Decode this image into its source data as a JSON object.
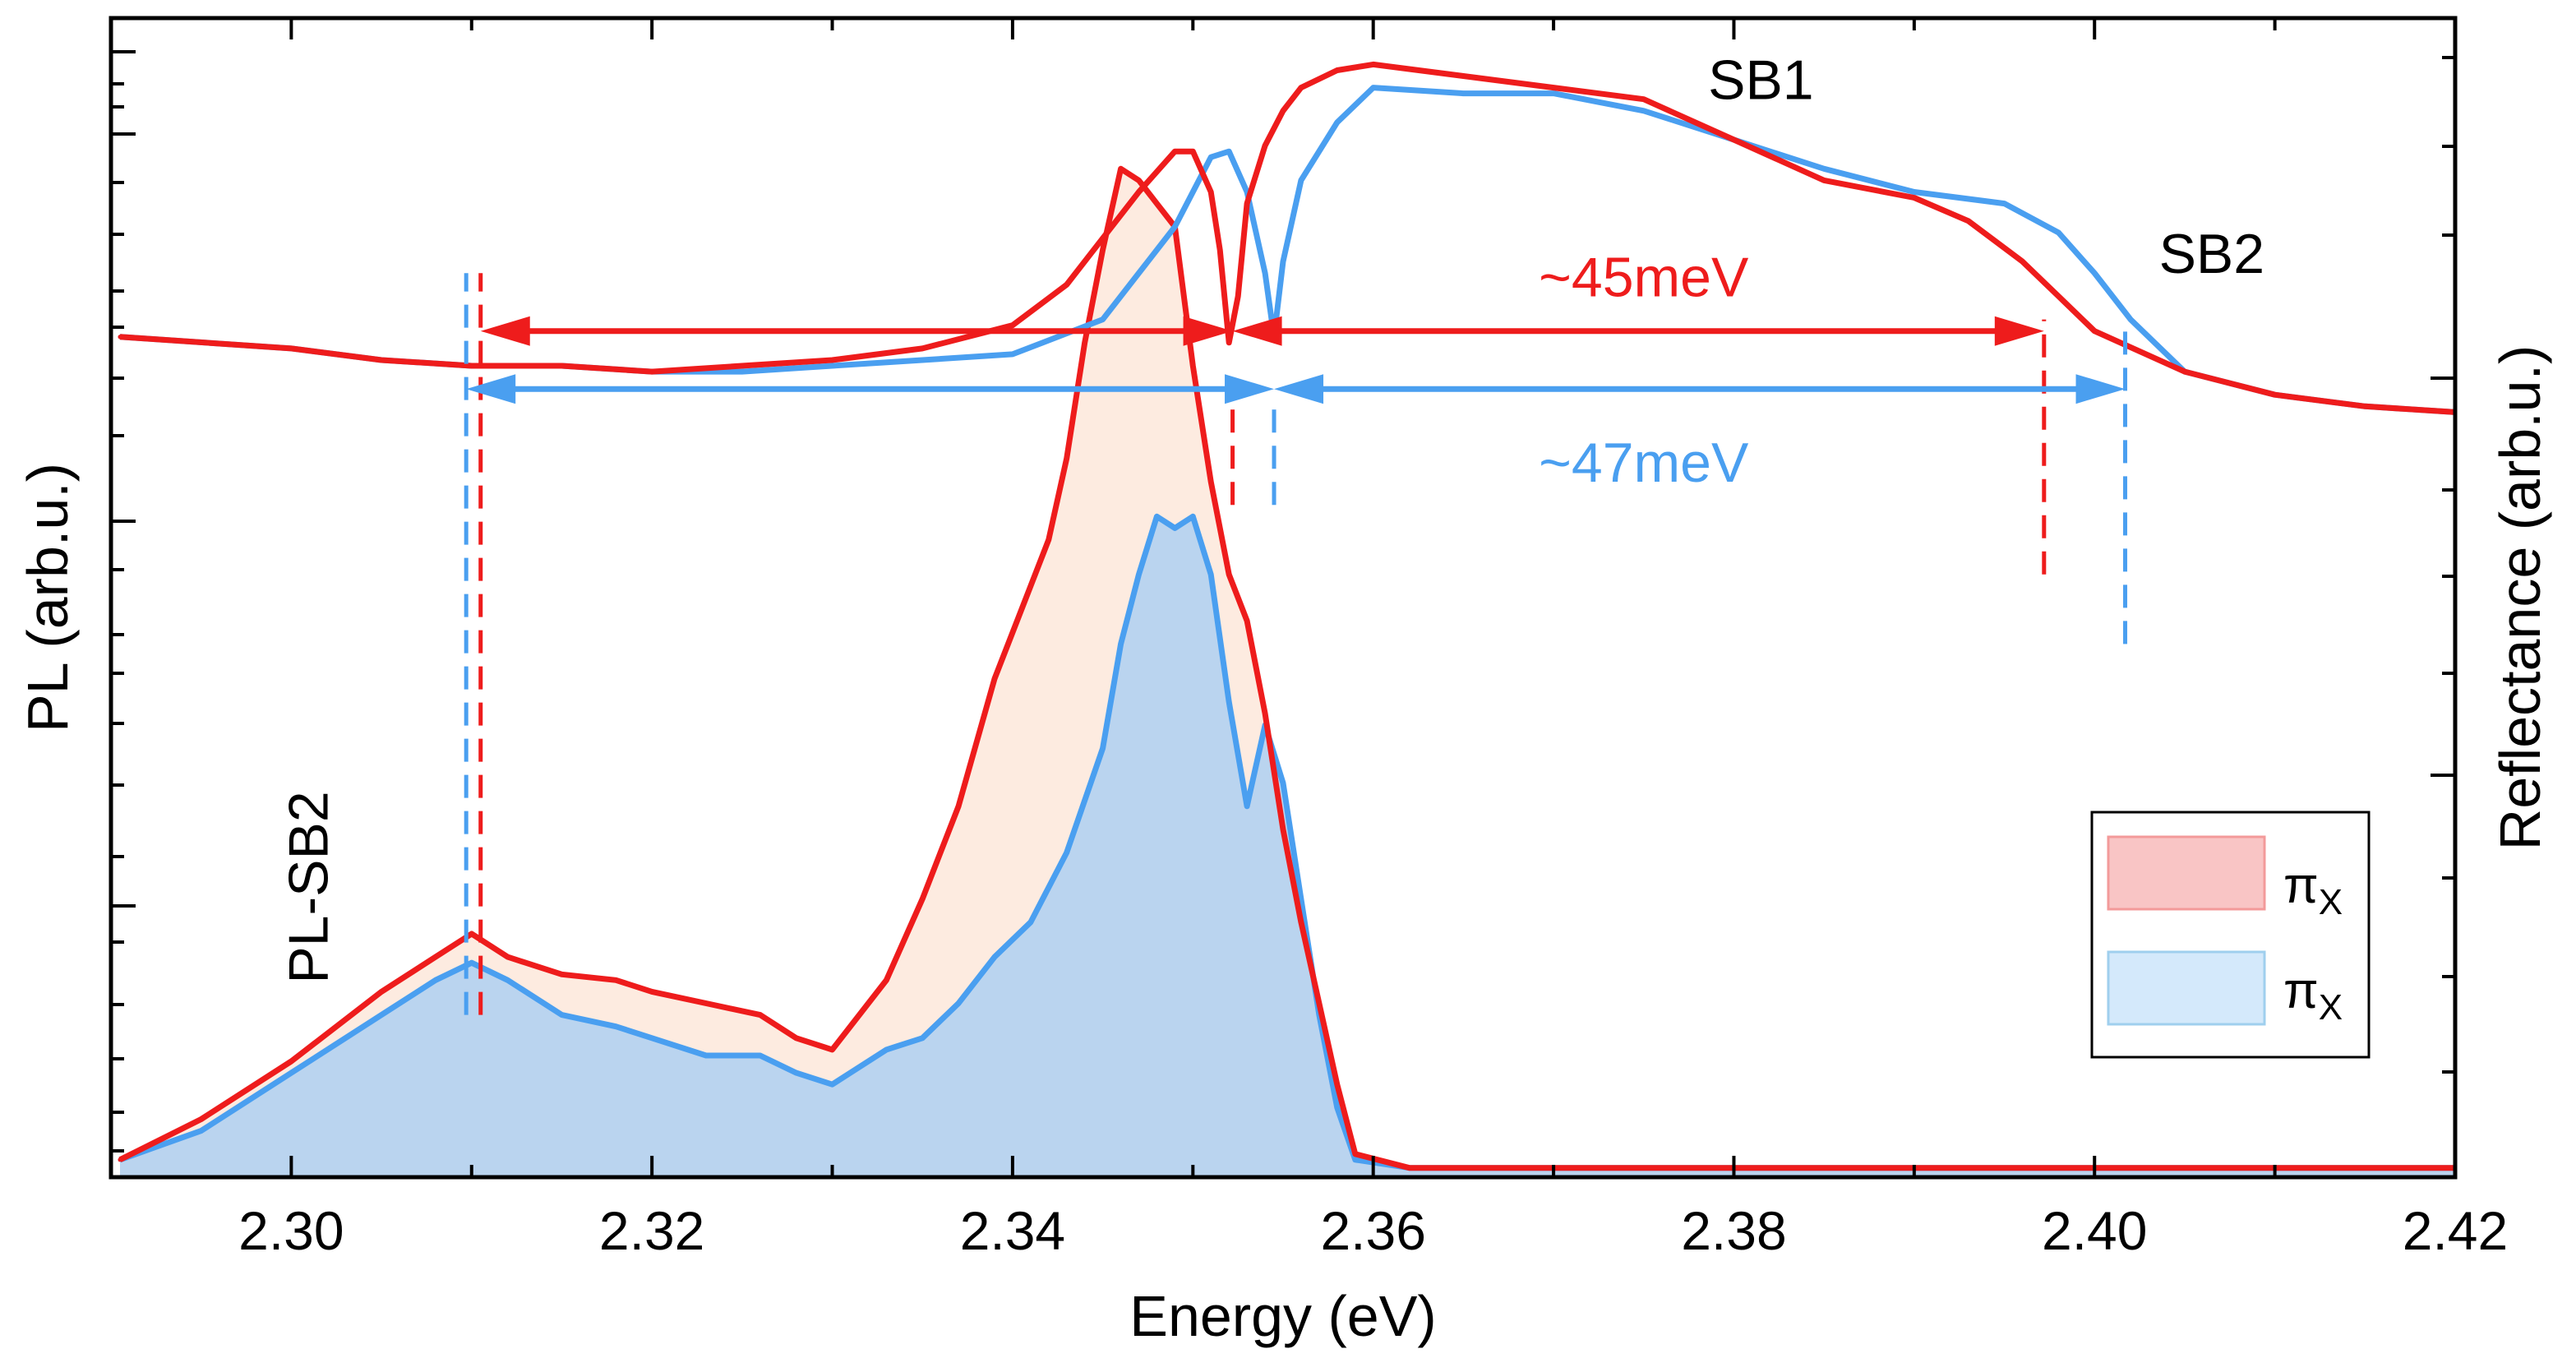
{
  "chart_data": {
    "type": "line",
    "xlabel": "Energy (eV)",
    "ylabel_left": "PL (arb.u.)",
    "ylabel_right": "Reflectance (arb.u.)",
    "xlim": [
      2.29,
      2.42
    ],
    "ylim": [
      0,
      100
    ],
    "x_ticks": [
      2.3,
      2.32,
      2.34,
      2.36,
      2.38,
      2.4,
      2.42
    ],
    "x_tick_labels": [
      "2.30",
      "2.32",
      "2.34",
      "2.36",
      "2.38",
      "2.40",
      "2.42"
    ],
    "series": [
      {
        "name": "PL πX (red)",
        "kind": "pl",
        "color": "#ee1c1c",
        "fill": "#fdebe0",
        "x": [
          2.2905,
          2.295,
          2.3,
          2.305,
          2.308,
          2.31,
          2.312,
          2.315,
          2.318,
          2.32,
          2.323,
          2.326,
          2.328,
          2.33,
          2.331,
          2.333,
          2.335,
          2.337,
          2.339,
          2.341,
          2.342,
          2.343,
          2.344,
          2.345,
          2.346,
          2.347,
          2.348,
          2.349,
          2.35,
          2.351,
          2.352,
          2.353,
          2.354,
          2.355,
          2.356,
          2.357,
          2.358,
          2.359,
          2.362,
          2.37,
          2.38,
          2.39,
          2.4,
          2.41,
          2.42
        ],
        "y": [
          1.5,
          5,
          10,
          16,
          19,
          21,
          19,
          17.5,
          17,
          16,
          15,
          14,
          12,
          11,
          13,
          17,
          24,
          32,
          43,
          51,
          55,
          62,
          72,
          80,
          87,
          86,
          84,
          82,
          70,
          60,
          52,
          48,
          40,
          30,
          22,
          15,
          8,
          2,
          0.8,
          0.8,
          0.8,
          0.8,
          0.8,
          0.8,
          0.8
        ]
      },
      {
        "name": "PL πX (blue)",
        "kind": "pl",
        "color": "#4a9ff0",
        "fill": "#bad4ef",
        "x": [
          2.2905,
          2.295,
          2.3,
          2.305,
          2.308,
          2.31,
          2.312,
          2.315,
          2.318,
          2.32,
          2.323,
          2.326,
          2.328,
          2.33,
          2.331,
          2.333,
          2.335,
          2.337,
          2.339,
          2.341,
          2.343,
          2.345,
          2.346,
          2.347,
          2.348,
          2.349,
          2.35,
          2.351,
          2.352,
          2.353,
          2.354,
          2.355,
          2.356,
          2.357,
          2.358,
          2.359,
          2.362,
          2.37,
          2.38,
          2.39,
          2.4,
          2.41,
          2.42
        ],
        "y": [
          1.5,
          4,
          9,
          14,
          17,
          18.5,
          17,
          14,
          13,
          12,
          10.5,
          10.5,
          9,
          8,
          9,
          11,
          12,
          15,
          19,
          22,
          28,
          37,
          46,
          52,
          57,
          56,
          57,
          52,
          41,
          32,
          39,
          34,
          24,
          14,
          6,
          1.5,
          0.8,
          0.8,
          0.8,
          0.8,
          0.8,
          0.8,
          0.8
        ]
      },
      {
        "name": "Reflectance πX (red)",
        "kind": "reflectance",
        "color": "#ee1c1c",
        "x": [
          2.2905,
          2.3,
          2.305,
          2.31,
          2.315,
          2.32,
          2.325,
          2.33,
          2.335,
          2.34,
          2.343,
          2.345,
          2.347,
          2.349,
          2.35,
          2.351,
          2.3515,
          2.352,
          2.3525,
          2.353,
          2.354,
          2.355,
          2.356,
          2.358,
          2.36,
          2.365,
          2.37,
          2.375,
          2.38,
          2.385,
          2.39,
          2.393,
          2.396,
          2.398,
          2.4,
          2.405,
          2.41,
          2.415,
          2.42
        ],
        "y": [
          72.5,
          71.5,
          70.5,
          70,
          70,
          69.5,
          70,
          70.5,
          71.5,
          73.5,
          77,
          81,
          85,
          88.5,
          88.5,
          85,
          80,
          72,
          76,
          84,
          89,
          92,
          94,
          95.5,
          96,
          95,
          94,
          93,
          89.5,
          86,
          84.5,
          82.5,
          79,
          76,
          73,
          69.5,
          67.5,
          66.5,
          66
        ]
      },
      {
        "name": "Reflectance πX (blue)",
        "kind": "reflectance",
        "color": "#4a9ff0",
        "x": [
          2.2905,
          2.3,
          2.305,
          2.31,
          2.315,
          2.32,
          2.325,
          2.33,
          2.335,
          2.34,
          2.345,
          2.347,
          2.349,
          2.35,
          2.351,
          2.352,
          2.353,
          2.354,
          2.3545,
          2.355,
          2.356,
          2.358,
          2.36,
          2.365,
          2.37,
          2.375,
          2.38,
          2.385,
          2.39,
          2.395,
          2.398,
          2.4,
          2.402,
          2.405,
          2.41,
          2.415,
          2.42
        ],
        "y": [
          72.5,
          71.5,
          70.5,
          70,
          70,
          69.5,
          69.5,
          70,
          70.5,
          71,
          74,
          78,
          82,
          85,
          88,
          88.5,
          85,
          78,
          72.5,
          79,
          86,
          91,
          94,
          93.5,
          93.5,
          92,
          89.5,
          87,
          85,
          84,
          81.5,
          78,
          74,
          69.5,
          67.5,
          66.5,
          66
        ]
      }
    ],
    "markers": [
      {
        "x": 2.3105,
        "color": "#ee1c1c",
        "y_range": [
          14,
          78
        ]
      },
      {
        "x": 2.3097,
        "color": "#4a9ff0",
        "y_range": [
          14,
          78
        ]
      },
      {
        "x": 2.3522,
        "color": "#ee1c1c",
        "y_range": [
          58,
          67
        ]
      },
      {
        "x": 2.3545,
        "color": "#4a9ff0",
        "y_range": [
          58,
          67
        ]
      },
      {
        "x": 2.3972,
        "color": "#ee1c1c",
        "y_range": [
          52,
          74
        ]
      },
      {
        "x": 2.4017,
        "color": "#4a9ff0",
        "y_range": [
          46,
          74
        ]
      }
    ],
    "arrows": [
      {
        "y": 73,
        "x1": 2.3105,
        "x2": 2.3522,
        "color": "#ee1c1c"
      },
      {
        "y": 73,
        "x1": 2.3522,
        "x2": 2.3972,
        "color": "#ee1c1c"
      },
      {
        "y": 68,
        "x1": 2.3097,
        "x2": 2.3545,
        "color": "#4a9ff0"
      },
      {
        "y": 68,
        "x1": 2.3545,
        "x2": 2.4017,
        "color": "#4a9ff0"
      }
    ],
    "annotations": [
      {
        "text": "~45meV",
        "x": 2.375,
        "y": 76,
        "color": "#ee1c1c"
      },
      {
        "text": "~47meV",
        "x": 2.375,
        "y": 60,
        "color": "#4a9ff0"
      },
      {
        "text": "SB1",
        "x": 2.3815,
        "y": 93,
        "color": "#000000"
      },
      {
        "text": "SB2",
        "x": 2.4065,
        "y": 78,
        "color": "#000000"
      },
      {
        "text": "PL-SB2",
        "x": 2.302,
        "y": 25,
        "color": "#000000",
        "rotate": -90
      }
    ],
    "legend": {
      "position": "bottom-right",
      "entries": [
        {
          "label": "π",
          "sub": "X",
          "fill": "#f9c5c5",
          "stroke": "#f39a9a"
        },
        {
          "label": "π",
          "sub": "X",
          "fill": "#d4e9fb",
          "stroke": "#9fcfee"
        }
      ]
    }
  }
}
